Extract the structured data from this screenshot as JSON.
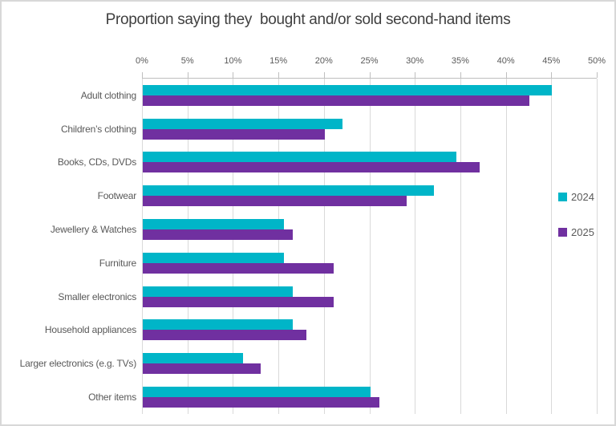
{
  "chart_data": {
    "type": "bar",
    "orientation": "horizontal",
    "title": "Proportion saying they  bought and/or sold second-hand items",
    "categories": [
      "Adult clothing",
      "Children’s clothing",
      "Books, CDs, DVDs",
      "Footwear",
      "Jewellery & Watches",
      "Furniture",
      "Smaller electronics",
      "Household appliances",
      "Larger electronics (e.g. TVs)",
      "Other items"
    ],
    "series": [
      {
        "name": "2024",
        "color": "#00B5C8",
        "values": [
          45,
          22,
          34.5,
          32,
          15.5,
          15.5,
          16.5,
          16.5,
          11,
          25
        ]
      },
      {
        "name": "2025",
        "color": "#7030A0",
        "values": [
          42.5,
          20,
          37,
          29,
          16.5,
          21,
          21,
          18,
          13,
          26
        ]
      }
    ],
    "xlim": [
      0,
      50
    ],
    "x_tick_labels": [
      "0%",
      "5%",
      "10%",
      "15%",
      "20%",
      "25%",
      "30%",
      "35%",
      "40%",
      "45%",
      "50%"
    ],
    "grid": true,
    "legend_position": "right",
    "colors": {
      "title_text": "#404040",
      "axis_text": "#595959",
      "gridline": "#D9D9D9",
      "axis_line": "#BFBFBF",
      "chart_border": "#D8D8D8"
    }
  }
}
